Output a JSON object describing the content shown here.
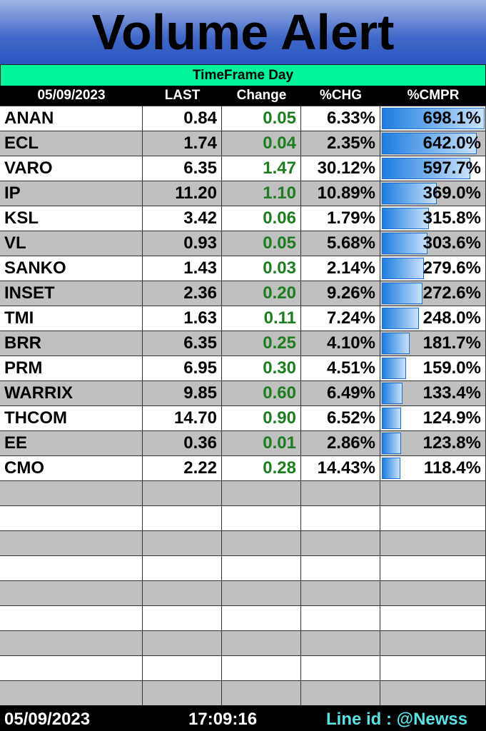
{
  "header": {
    "title": "Volume Alert",
    "timeframe": "TimeFrame  Day"
  },
  "table": {
    "columns": [
      "05/09/2023",
      "LAST",
      "Change",
      "%CHG",
      "%CMPR"
    ],
    "rows": [
      {
        "symbol": "ANAN",
        "last": "0.84",
        "change": "0.05",
        "chg": "6.33%",
        "cmpr": {
          "value": 698.1,
          "label": "698.1%"
        }
      },
      {
        "symbol": "ECL",
        "last": "1.74",
        "change": "0.04",
        "chg": "2.35%",
        "cmpr": {
          "value": 642.0,
          "label": "642.0%"
        }
      },
      {
        "symbol": "VARO",
        "last": "6.35",
        "change": "1.47",
        "chg": "30.12%",
        "cmpr": {
          "value": 597.7,
          "label": "597.7%"
        }
      },
      {
        "symbol": "IP",
        "last": "11.20",
        "change": "1.10",
        "chg": "10.89%",
        "cmpr": {
          "value": 369.0,
          "label": "369.0%"
        }
      },
      {
        "symbol": "KSL",
        "last": "3.42",
        "change": "0.06",
        "chg": "1.79%",
        "cmpr": {
          "value": 315.8,
          "label": "315.8%"
        }
      },
      {
        "symbol": "VL",
        "last": "0.93",
        "change": "0.05",
        "chg": "5.68%",
        "cmpr": {
          "value": 303.6,
          "label": "303.6%"
        }
      },
      {
        "symbol": "SANKO",
        "last": "1.43",
        "change": "0.03",
        "chg": "2.14%",
        "cmpr": {
          "value": 279.6,
          "label": "279.6%"
        }
      },
      {
        "symbol": "INSET",
        "last": "2.36",
        "change": "0.20",
        "chg": "9.26%",
        "cmpr": {
          "value": 272.6,
          "label": "272.6%"
        }
      },
      {
        "symbol": "TMI",
        "last": "1.63",
        "change": "0.11",
        "chg": "7.24%",
        "cmpr": {
          "value": 248.0,
          "label": "248.0%"
        }
      },
      {
        "symbol": "BRR",
        "last": "6.35",
        "change": "0.25",
        "chg": "4.10%",
        "cmpr": {
          "value": 181.7,
          "label": "181.7%"
        }
      },
      {
        "symbol": "PRM",
        "last": "6.95",
        "change": "0.30",
        "chg": "4.51%",
        "cmpr": {
          "value": 159.0,
          "label": "159.0%"
        }
      },
      {
        "symbol": "WARRIX",
        "last": "9.85",
        "change": "0.60",
        "chg": "6.49%",
        "cmpr": {
          "value": 133.4,
          "label": "133.4%"
        }
      },
      {
        "symbol": "THCOM",
        "last": "14.70",
        "change": "0.90",
        "chg": "6.52%",
        "cmpr": {
          "value": 124.9,
          "label": "124.9%"
        }
      },
      {
        "symbol": "EE",
        "last": "0.36",
        "change": "0.01",
        "chg": "2.86%",
        "cmpr": {
          "value": 123.8,
          "label": "123.8%"
        }
      },
      {
        "symbol": "CMO",
        "last": "2.22",
        "change": "0.28",
        "chg": "14.43%",
        "cmpr": {
          "value": 118.4,
          "label": "118.4%"
        }
      }
    ]
  },
  "footer": {
    "date": "05/09/2023",
    "time": "17:09:16",
    "line_id": "Line id : @Newss"
  }
}
